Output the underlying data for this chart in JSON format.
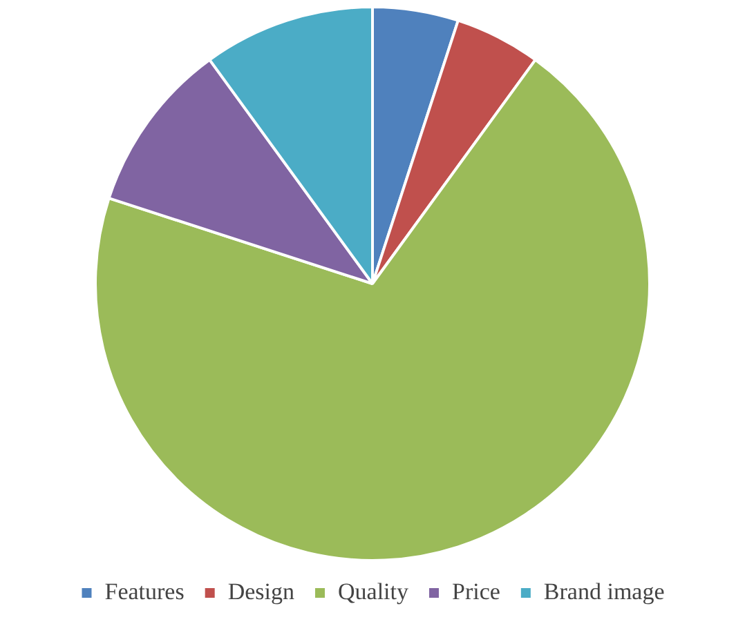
{
  "chart_data": {
    "type": "pie",
    "categories": [
      "Features",
      "Design",
      "Quality",
      "Price",
      "Brand image"
    ],
    "values": [
      5,
      5,
      70,
      10,
      10
    ],
    "colors": [
      "#4f81bd",
      "#c0504d",
      "#9bbb59",
      "#8064a2",
      "#4bacc6"
    ],
    "legend": "bottom"
  }
}
